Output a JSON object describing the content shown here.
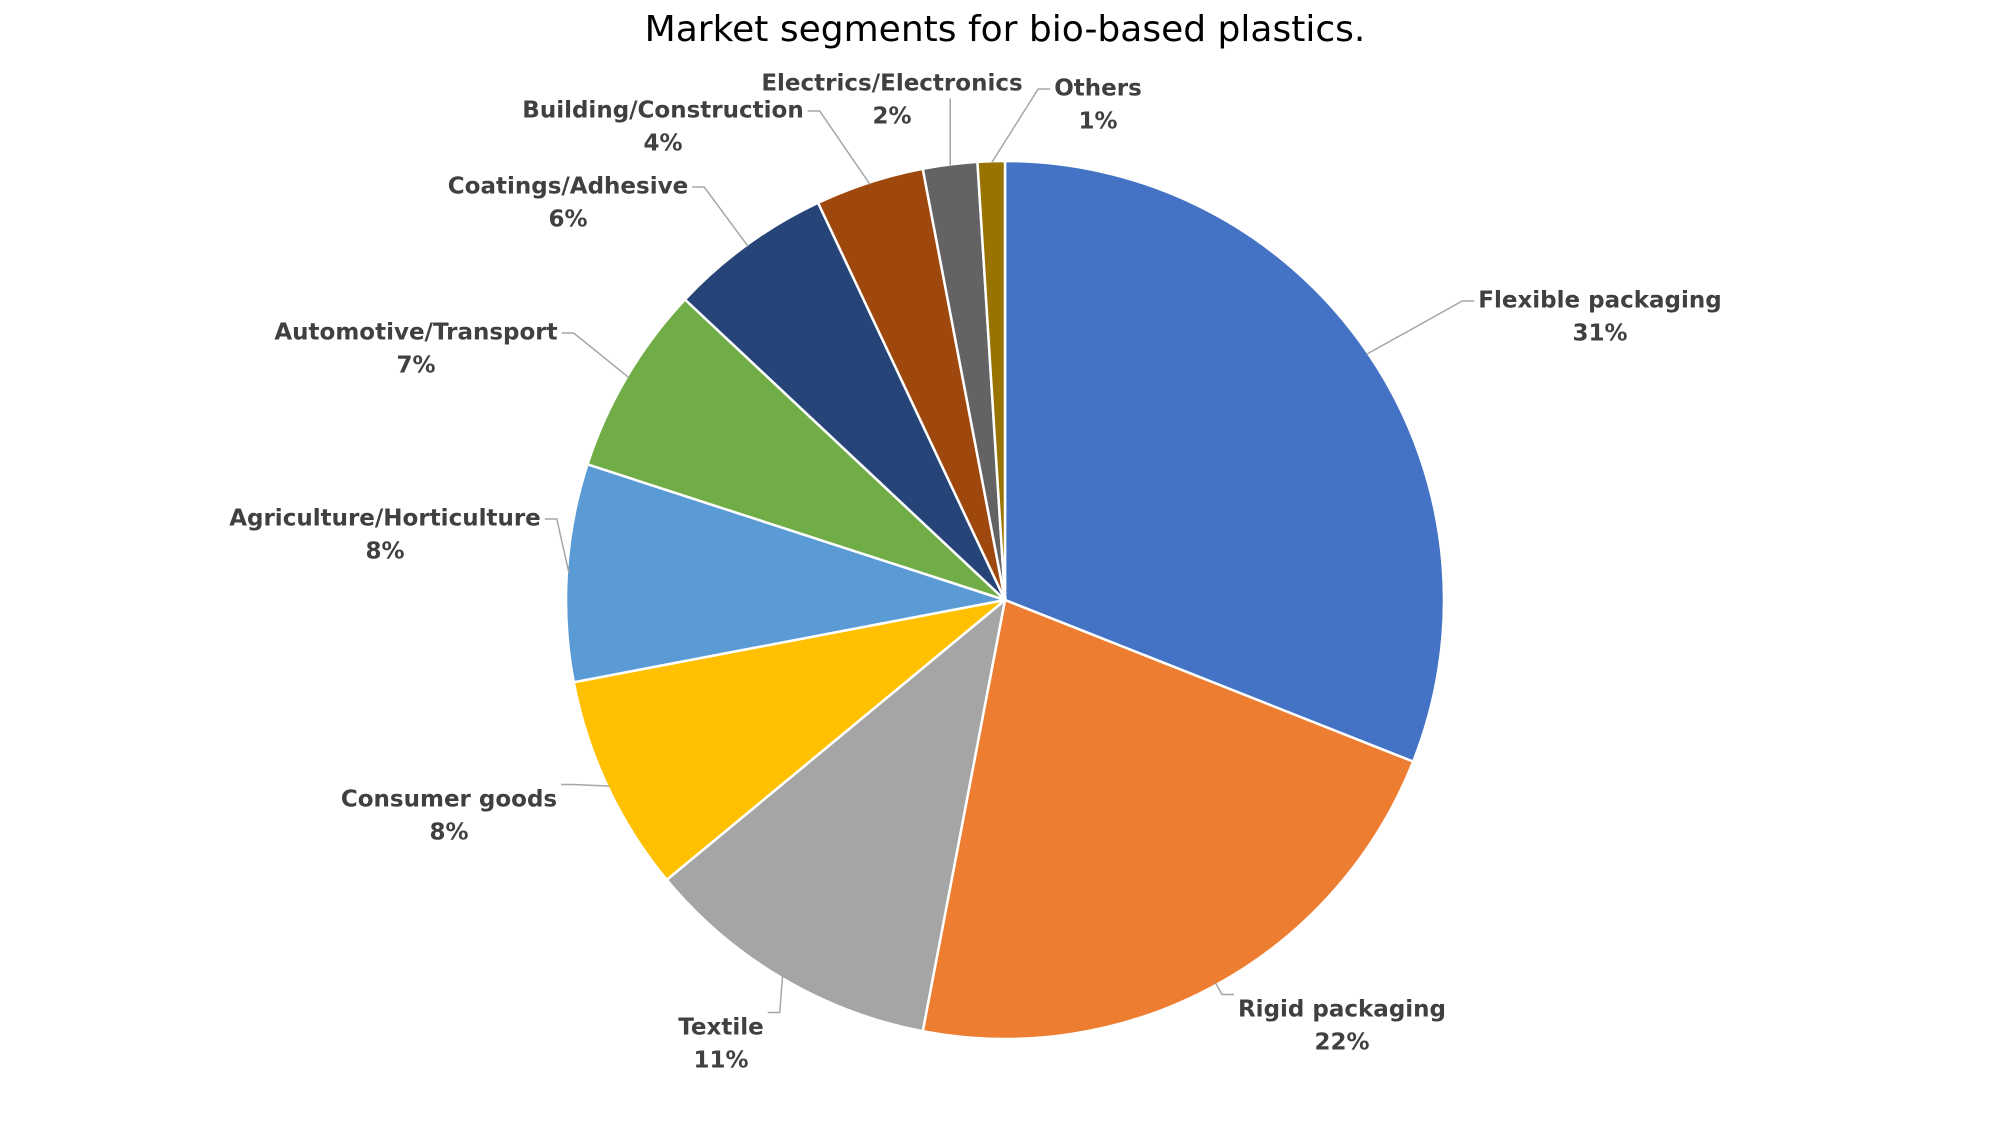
{
  "chart_data": {
    "type": "pie",
    "title": "Market segments for bio-based plastics.",
    "categories": [
      "Flexible packaging",
      "Rigid packaging",
      "Textile",
      "Consumer goods",
      "Agriculture/Horticulture",
      "Automotive/Transport",
      "Coatings/Adhesive",
      "Building/Construction",
      "Electrics/Electronics",
      "Others"
    ],
    "values": [
      31,
      22,
      11,
      8,
      8,
      7,
      6,
      4,
      2,
      1
    ],
    "value_labels": [
      "31%",
      "22%",
      "11%",
      "8%",
      "8%",
      "7%",
      "6%",
      "4%",
      "2%",
      "1%"
    ],
    "colors": [
      "#4472c4",
      "#ed7d31",
      "#a5a5a5",
      "#ffc000",
      "#5b9bd5",
      "#70ad47",
      "#264478",
      "#9e480e",
      "#636363",
      "#997300"
    ]
  }
}
